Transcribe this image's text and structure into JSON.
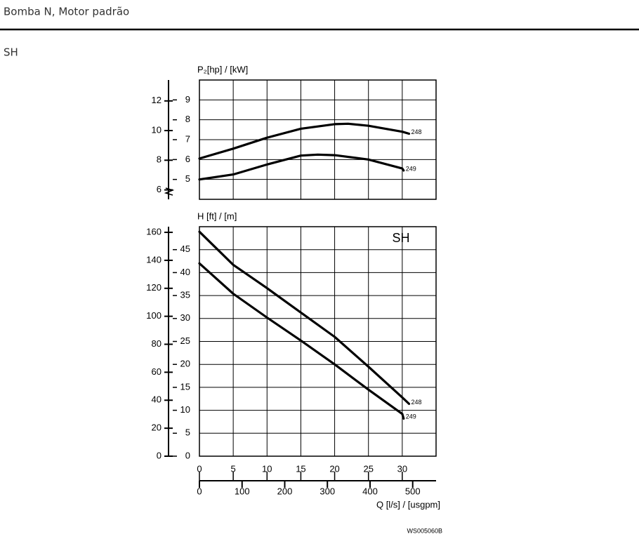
{
  "header": {
    "title": "Bomba N, Motor padrão",
    "section": "SH"
  },
  "chart_data": [
    {
      "type": "line",
      "ylabel": "P₂[hp] / [kW]",
      "xlim": [
        0,
        35
      ],
      "xticks": [
        0,
        5,
        10,
        15,
        20,
        25,
        30
      ],
      "ylim": [
        4,
        10
      ],
      "yticks": [
        5,
        6,
        7,
        8,
        9
      ],
      "y2lim": [
        5.364,
        13.41
      ],
      "y2ticks": [
        6,
        8,
        10,
        12
      ],
      "grid": true,
      "series": [
        {
          "name": "248",
          "color": "#000000",
          "x": [
            0,
            5,
            10,
            15,
            20,
            22,
            25,
            30,
            31
          ],
          "values": [
            6.05,
            6.55,
            7.1,
            7.55,
            7.78,
            7.8,
            7.7,
            7.4,
            7.3
          ]
        },
        {
          "name": "249",
          "color": "#000000",
          "x": [
            0,
            5,
            10,
            15,
            17.5,
            20,
            25,
            30,
            30.2
          ],
          "values": [
            5.0,
            5.25,
            5.75,
            6.2,
            6.25,
            6.22,
            6.0,
            5.55,
            5.45
          ]
        }
      ]
    },
    {
      "type": "line",
      "ylabel": "H [ft] / [m]",
      "xlabel": "Q [l/s] / [usgpm]",
      "annotation": "SH",
      "xlim": [
        0,
        35
      ],
      "xticks": [
        0,
        5,
        10,
        15,
        20,
        25,
        30
      ],
      "x2lim": [
        0,
        554.8
      ],
      "x2ticks": [
        0,
        100,
        200,
        300,
        400,
        500
      ],
      "ylim": [
        0,
        50
      ],
      "yticks": [
        0,
        5,
        10,
        15,
        20,
        25,
        30,
        35,
        40,
        45
      ],
      "y2lim": [
        0,
        164.04
      ],
      "y2ticks": [
        0,
        20,
        40,
        60,
        80,
        100,
        120,
        140,
        160
      ],
      "grid": true,
      "series": [
        {
          "name": "248",
          "color": "#000000",
          "x": [
            0,
            5,
            10,
            15,
            20,
            25,
            30,
            31
          ],
          "values": [
            48.9,
            41.7,
            36.6,
            31.3,
            26.0,
            19.5,
            12.8,
            11.4
          ]
        },
        {
          "name": "249",
          "color": "#000000",
          "x": [
            0,
            5,
            10,
            15,
            20,
            25,
            30,
            30.2
          ],
          "values": [
            42.0,
            35.4,
            30.2,
            25.2,
            20.0,
            14.5,
            9.2,
            8.2
          ]
        }
      ]
    }
  ],
  "footer": {
    "code": "WS005060B"
  }
}
